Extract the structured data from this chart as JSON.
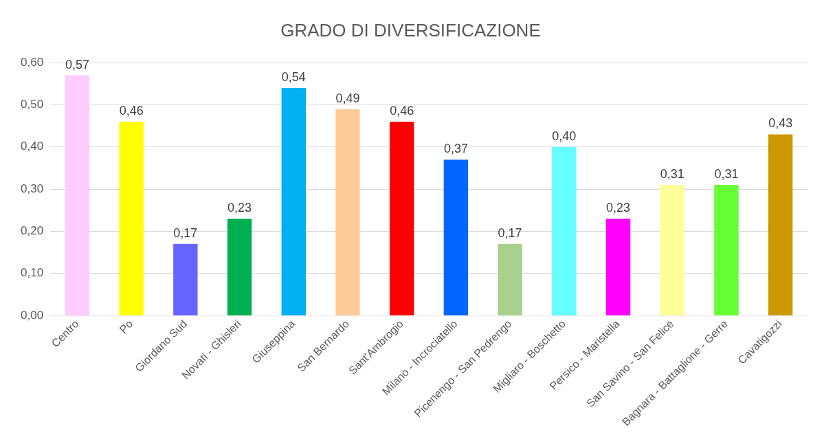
{
  "chart_data": {
    "type": "bar",
    "title": "GRADO DI DIVERSIFICAZIONE",
    "categories": [
      "Centro",
      "Po",
      "Giordano Sud",
      "Novati - Ghisleri",
      "Giuseppina",
      "San Bernardo",
      "Sant'Ambrogio",
      "Milano - Incrociatello",
      "Picenengo - San Pedrengo",
      "Migliaro - Boschetto",
      "Persico - Maristella",
      "San Savino - San Felice",
      "Bagnara - Battaglione - Gerre",
      "Cavatigozzi"
    ],
    "values": [
      0.57,
      0.46,
      0.17,
      0.23,
      0.54,
      0.49,
      0.46,
      0.37,
      0.17,
      0.4,
      0.23,
      0.31,
      0.31,
      0.43
    ],
    "value_labels": [
      "0,57",
      "0,46",
      "0,17",
      "0,23",
      "0,54",
      "0,49",
      "0,46",
      "0,37",
      "0,17",
      "0,40",
      "0,23",
      "0,31",
      "0,31",
      "0,43"
    ],
    "colors": [
      "#ffccff",
      "#ffff00",
      "#6666ff",
      "#00b050",
      "#00b0f0",
      "#ffcc99",
      "#ff0000",
      "#0066ff",
      "#a9d18e",
      "#66ffff",
      "#ff00ff",
      "#ffff99",
      "#66ff33",
      "#cc9900"
    ],
    "ylim": [
      0,
      0.6
    ],
    "yticks": [
      {
        "value": 0,
        "label": "0,00"
      },
      {
        "value": 0.1,
        "label": "0,10"
      },
      {
        "value": 0.2,
        "label": "0,20"
      },
      {
        "value": 0.3,
        "label": "0,30"
      },
      {
        "value": 0.4,
        "label": "0,40"
      },
      {
        "value": 0.5,
        "label": "0,50"
      },
      {
        "value": 0.6,
        "label": "0,60"
      }
    ],
    "grid": "y",
    "legend": false
  }
}
